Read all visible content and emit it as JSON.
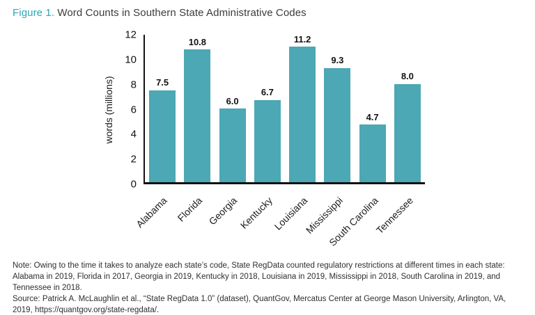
{
  "header": {
    "figure_label": "Figure 1.",
    "title": " Word Counts in Southern State Administrative Codes"
  },
  "chart_data": {
    "type": "bar",
    "title": "Word Counts in Southern State Administrative Codes",
    "categories": [
      "Alabama",
      "Florida",
      "Georgia",
      "Kentucky",
      "Louisiana",
      "Mississippi",
      "South Carolina",
      "Tennessee"
    ],
    "values": [
      7.5,
      10.8,
      6.0,
      6.7,
      11.2,
      9.3,
      4.7,
      8.0
    ],
    "value_labels": [
      "7.5",
      "10.8",
      "6.0",
      "6.7",
      "11.2",
      "9.3",
      "4.7",
      "8.0"
    ],
    "xlabel": "",
    "ylabel": "words (millions)",
    "ylim": [
      0,
      12
    ],
    "y_ticks": [
      0,
      2,
      4,
      6,
      8,
      10,
      12
    ],
    "grid": false,
    "legend": "none"
  },
  "colors": {
    "bar": "#4BA8B4",
    "figure_label": "#2BA6B4",
    "title_text": "#3B3B3B",
    "axis": "#111111",
    "note_text": "#2E2E2E"
  },
  "notes": {
    "note": "Note: Owing to the time it takes to analyze each state’s code, State RegData counted regulatory restrictions at different times in each state: Alabama in 2019, Florida in 2017, Georgia in 2019, Kentucky in 2018, Louisiana in 2019, Mississippi in 2018, South Carolina in 2019, and Tennessee in 2018.",
    "source": "Source: Patrick A. McLaughlin et al., “State RegData 1.0” (dataset), QuantGov, Mercatus Center at George Mason University, Arlington, VA, 2019, https://quantgov.org/state-regdata/."
  }
}
